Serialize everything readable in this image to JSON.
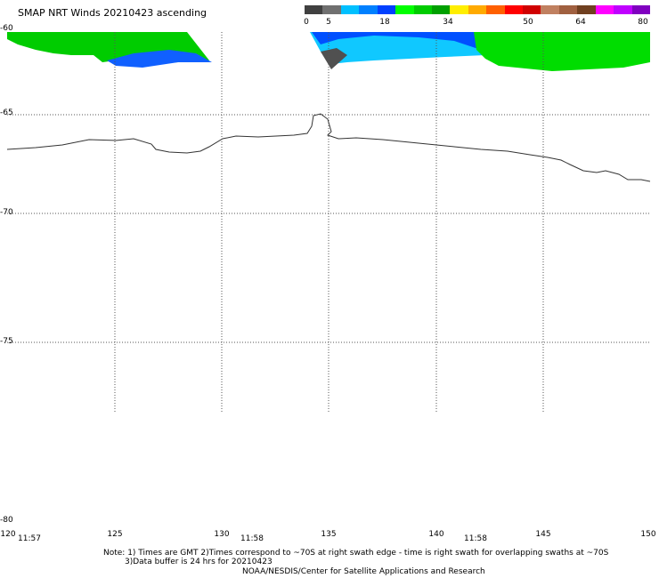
{
  "title": "SMAP NRT Winds 20210423 ascending",
  "colorbar": {
    "labels": [
      "0",
      "5",
      "18",
      "34",
      "50",
      "64",
      "80"
    ],
    "colors": [
      "#404040",
      "#707070",
      "#00c0ff",
      "#0080ff",
      "#0040ff",
      "#00ff00",
      "#00cc00",
      "#00a000",
      "#ffee00",
      "#ffaa00",
      "#ff6000",
      "#ff0000",
      "#d00000",
      "#c08060",
      "#a06040",
      "#704020",
      "#ff00ff",
      "#c000ff",
      "#8000c0"
    ]
  },
  "map": {
    "latitudes": [
      "-60",
      "-65",
      "-70",
      "-75",
      "-80"
    ],
    "longitudes": [
      "120",
      "125",
      "130",
      "135",
      "140",
      "145",
      "150"
    ],
    "times": [
      "11:57",
      "11:58",
      "11:58"
    ]
  },
  "notes": {
    "line1": "Note: 1) Times are GMT 2)Times correspond to ~70S at right swath edge - time is right swath for overlapping swaths at ~70S",
    "line2": "3)Data buffer is 24 hrs for 20210423",
    "line3": "NOAA/NESDIS/Center for Satellite Applications and Research"
  }
}
